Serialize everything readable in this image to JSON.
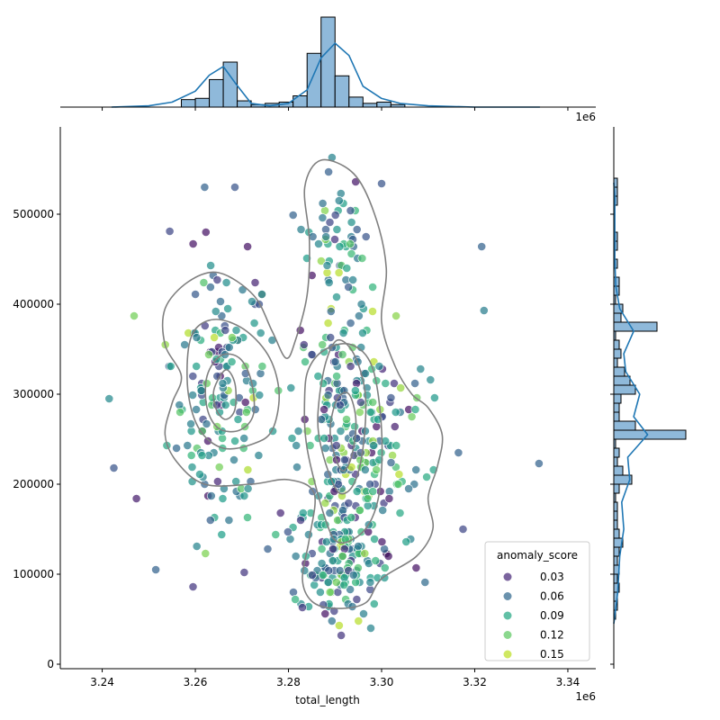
{
  "chart_data": {
    "type": "scatter",
    "title": "",
    "xlabel": "total_length",
    "ylabel": "",
    "x_offset_label": "1e6",
    "xlim": [
      3231000,
      3346000
    ],
    "ylim": [
      -5000,
      597000
    ],
    "x_ticks": [
      3240000,
      3260000,
      3280000,
      3300000,
      3320000,
      3340000
    ],
    "x_tick_labels": [
      "3.24",
      "3.26",
      "3.28",
      "3.30",
      "3.32",
      "3.34"
    ],
    "y_ticks": [
      0,
      100000,
      200000,
      300000,
      400000,
      500000
    ],
    "y_tick_labels": [
      "0",
      "100000",
      "200000",
      "300000",
      "400000",
      "500000"
    ],
    "grid": false,
    "colormap": "viridis",
    "hue": "anomaly_score",
    "legend": {
      "title": "anomaly_score",
      "placement": "lower-right",
      "entries": [
        {
          "label": "0.03",
          "color": "#482878"
        },
        {
          "label": "0.06",
          "color": "#31688e"
        },
        {
          "label": "0.09",
          "color": "#26a784"
        },
        {
          "label": "0.12",
          "color": "#5ec962"
        },
        {
          "label": "0.15",
          "color": "#bddf26"
        }
      ]
    },
    "clusters": [
      {
        "cx": 3266000,
        "cy": 300000,
        "sx": 5500,
        "sy": 75000,
        "n": 170
      },
      {
        "cx": 3291000,
        "cy": 250000,
        "sx": 5000,
        "sy": 90000,
        "n": 200
      },
      {
        "cx": 3291000,
        "cy": 110000,
        "sx": 5000,
        "sy": 25000,
        "n": 110
      },
      {
        "cx": 3291000,
        "cy": 460000,
        "sx": 3500,
        "sy": 45000,
        "n": 45
      },
      {
        "cx": 3299000,
        "cy": 180000,
        "sx": 5000,
        "sy": 60000,
        "n": 50
      },
      {
        "cx": 3300000,
        "cy": 270000,
        "sx": 7000,
        "sy": 40000,
        "n": 40
      }
    ],
    "extra_points": [
      {
        "x": 3242500,
        "y": 218000,
        "score": 0.05
      },
      {
        "x": 3241500,
        "y": 295000,
        "score": 0.09
      },
      {
        "x": 3251500,
        "y": 105000,
        "score": 0.06
      },
      {
        "x": 3254500,
        "y": 481000,
        "score": 0.04
      },
      {
        "x": 3268500,
        "y": 530000,
        "score": 0.05
      },
      {
        "x": 3270500,
        "y": 102000,
        "score": 0.03
      },
      {
        "x": 3281000,
        "y": 499000,
        "score": 0.06
      },
      {
        "x": 3300000,
        "y": 534000,
        "score": 0.05
      },
      {
        "x": 3316500,
        "y": 235000,
        "score": 0.06
      },
      {
        "x": 3317500,
        "y": 150000,
        "score": 0.04
      },
      {
        "x": 3321500,
        "y": 464000,
        "score": 0.06
      },
      {
        "x": 3322000,
        "y": 393000,
        "score": 0.08
      },
      {
        "x": 3333800,
        "y": 223000,
        "score": 0.06
      },
      {
        "x": 3310500,
        "y": 316000,
        "score": 0.09
      },
      {
        "x": 3259500,
        "y": 86000,
        "score": 0.03
      },
      {
        "x": 3262000,
        "y": 530000,
        "score": 0.06
      },
      {
        "x": 3283000,
        "y": 63000,
        "score": 0.03
      },
      {
        "x": 3287500,
        "y": 66000,
        "score": 0.04
      }
    ],
    "kde_contours": [
      {
        "points": [
          [
            3257000,
            320000
          ],
          [
            3255000,
            290000
          ],
          [
            3253500,
            255000
          ],
          [
            3256000,
            225000
          ],
          [
            3262000,
            200000
          ],
          [
            3272000,
            200000
          ],
          [
            3280000,
            205000
          ],
          [
            3285500,
            190000
          ],
          [
            3284500,
            140000
          ],
          [
            3283000,
            95000
          ],
          [
            3285000,
            70000
          ],
          [
            3290000,
            62000
          ],
          [
            3296500,
            68000
          ],
          [
            3300000,
            95000
          ],
          [
            3307500,
            120000
          ],
          [
            3311000,
            150000
          ],
          [
            3310000,
            185000
          ],
          [
            3312000,
            220000
          ],
          [
            3313000,
            255000
          ],
          [
            3310000,
            285000
          ],
          [
            3306500,
            300000
          ],
          [
            3303000,
            330000
          ],
          [
            3300000,
            380000
          ],
          [
            3301000,
            440000
          ],
          [
            3298500,
            500000
          ],
          [
            3294000,
            545000
          ],
          [
            3287000,
            560000
          ],
          [
            3283500,
            530000
          ],
          [
            3284500,
            470000
          ],
          [
            3284000,
            410000
          ],
          [
            3281500,
            360000
          ],
          [
            3279500,
            340000
          ],
          [
            3276500,
            370000
          ],
          [
            3272500,
            410000
          ],
          [
            3265000,
            435000
          ],
          [
            3258500,
            425000
          ],
          [
            3253500,
            395000
          ],
          [
            3253500,
            355000
          ]
        ]
      },
      {
        "points": [
          [
            3258500,
            350000
          ],
          [
            3258500,
            300000
          ],
          [
            3261000,
            260000
          ],
          [
            3266000,
            240000
          ],
          [
            3272500,
            245000
          ],
          [
            3276500,
            260000
          ],
          [
            3278000,
            300000
          ],
          [
            3276000,
            340000
          ],
          [
            3271000,
            370000
          ],
          [
            3265000,
            383000
          ],
          [
            3260500,
            375000
          ]
        ]
      },
      {
        "points": [
          [
            3262500,
            320000
          ],
          [
            3262500,
            285000
          ],
          [
            3265000,
            262000
          ],
          [
            3269500,
            260000
          ],
          [
            3272500,
            278000
          ],
          [
            3272000,
            315000
          ],
          [
            3269500,
            340000
          ],
          [
            3265500,
            343000
          ]
        ]
      },
      {
        "points": [
          [
            3264000,
            305000
          ],
          [
            3264500,
            283000
          ],
          [
            3266500,
            272000
          ],
          [
            3268500,
            283000
          ],
          [
            3268500,
            312000
          ],
          [
            3266500,
            327000
          ]
        ]
      },
      {
        "points": [
          [
            3283500,
            300000
          ],
          [
            3284000,
            240000
          ],
          [
            3288000,
            160000
          ],
          [
            3291000,
            135000
          ],
          [
            3296500,
            150000
          ],
          [
            3299500,
            190000
          ],
          [
            3300000,
            260000
          ],
          [
            3298000,
            330000
          ],
          [
            3293500,
            355000
          ],
          [
            3288000,
            350000
          ],
          [
            3284500,
            330000
          ]
        ]
      },
      {
        "points": [
          [
            3286500,
            290000
          ],
          [
            3286500,
            255000
          ],
          [
            3288500,
            215000
          ],
          [
            3291000,
            190000
          ],
          [
            3294000,
            200000
          ],
          [
            3296000,
            240000
          ],
          [
            3296500,
            300000
          ],
          [
            3294000,
            345000
          ],
          [
            3290500,
            360000
          ],
          [
            3288000,
            335000
          ]
        ]
      },
      {
        "points": [
          [
            3289000,
            265000
          ],
          [
            3289500,
            240000
          ],
          [
            3291500,
            215000
          ],
          [
            3293500,
            230000
          ],
          [
            3294500,
            270000
          ],
          [
            3293000,
            300000
          ],
          [
            3290500,
            295000
          ]
        ]
      }
    ],
    "top_histogram": {
      "bins_x": [
        3257000,
        3260000,
        3263000,
        3266000,
        3269000,
        3272000,
        3275000,
        3278000,
        3281000,
        3284000,
        3287000,
        3290000,
        3293000,
        3296000,
        3299000,
        3302000,
        3305000
      ],
      "counts": [
        6,
        7,
        22,
        36,
        5,
        2,
        3,
        4,
        9,
        43,
        72,
        25,
        8,
        3,
        4,
        2,
        0
      ],
      "kde": [
        [
          3242000,
          0
        ],
        [
          3250000,
          1
        ],
        [
          3255000,
          4
        ],
        [
          3260000,
          13
        ],
        [
          3263000,
          26
        ],
        [
          3266000,
          33
        ],
        [
          3268500,
          20
        ],
        [
          3272000,
          3
        ],
        [
          3276000,
          1
        ],
        [
          3280000,
          3
        ],
        [
          3284000,
          14
        ],
        [
          3287000,
          40
        ],
        [
          3290000,
          52
        ],
        [
          3293000,
          42
        ],
        [
          3296000,
          17
        ],
        [
          3300000,
          7
        ],
        [
          3304000,
          3
        ],
        [
          3310000,
          1
        ],
        [
          3320000,
          0
        ],
        [
          3334000,
          0
        ]
      ]
    },
    "right_histogram": {
      "bins_y": [
        50000,
        60000,
        70000,
        80000,
        90000,
        100000,
        110000,
        120000,
        130000,
        140000,
        150000,
        160000,
        170000,
        180000,
        190000,
        200000,
        210000,
        220000,
        230000,
        240000,
        250000,
        260000,
        270000,
        280000,
        290000,
        300000,
        310000,
        320000,
        330000,
        340000,
        350000,
        360000,
        370000,
        380000,
        390000,
        400000,
        410000,
        420000,
        430000,
        440000,
        450000,
        460000,
        470000,
        480000,
        490000,
        500000,
        510000,
        520000,
        530000
      ],
      "counts": [
        1,
        2,
        2,
        3,
        2,
        3,
        2,
        3,
        5,
        3,
        2,
        2,
        2,
        1,
        3,
        10,
        5,
        2,
        3,
        1,
        40,
        12,
        3,
        3,
        4,
        12,
        9,
        6,
        2,
        4,
        3,
        1,
        24,
        4,
        5,
        1,
        3,
        3,
        0,
        2,
        0,
        2,
        2,
        0,
        0,
        0,
        2,
        2,
        2
      ],
      "kde": [
        [
          45000,
          0
        ],
        [
          80000,
          4
        ],
        [
          120000,
          6
        ],
        [
          150000,
          10
        ],
        [
          180000,
          8
        ],
        [
          205000,
          16
        ],
        [
          230000,
          14
        ],
        [
          255000,
          34
        ],
        [
          275000,
          20
        ],
        [
          300000,
          26
        ],
        [
          325000,
          12
        ],
        [
          345000,
          10
        ],
        [
          370000,
          20
        ],
        [
          395000,
          6
        ],
        [
          420000,
          2
        ],
        [
          450000,
          1
        ],
        [
          480000,
          1
        ],
        [
          520000,
          1
        ],
        [
          535000,
          0
        ]
      ]
    }
  }
}
